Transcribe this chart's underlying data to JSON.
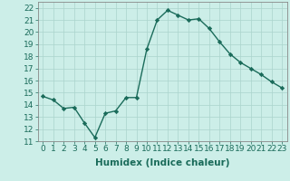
{
  "x": [
    0,
    1,
    2,
    3,
    4,
    5,
    6,
    7,
    8,
    9,
    10,
    11,
    12,
    13,
    14,
    15,
    16,
    17,
    18,
    19,
    20,
    21,
    22,
    23
  ],
  "y": [
    14.7,
    14.4,
    13.7,
    13.8,
    12.5,
    11.3,
    13.3,
    13.5,
    14.6,
    14.6,
    18.6,
    21.0,
    21.8,
    21.4,
    21.0,
    21.1,
    20.3,
    19.2,
    18.2,
    17.5,
    17.0,
    16.5,
    15.9,
    15.4
  ],
  "line_color": "#1a6b5a",
  "marker": "D",
  "marker_size": 2.2,
  "line_width": 1.0,
  "bg_color": "#cceee8",
  "grid_color": "#aad4cc",
  "xlabel": "Humidex (Indice chaleur)",
  "xlim": [
    -0.5,
    23.5
  ],
  "ylim": [
    11,
    22.5
  ],
  "xtick_labels": [
    "0",
    "1",
    "2",
    "3",
    "4",
    "5",
    "6",
    "7",
    "8",
    "9",
    "10",
    "11",
    "12",
    "13",
    "14",
    "15",
    "16",
    "17",
    "18",
    "19",
    "20",
    "21",
    "22",
    "23"
  ],
  "ytick_values": [
    11,
    12,
    13,
    14,
    15,
    16,
    17,
    18,
    19,
    20,
    21,
    22
  ],
  "tick_fontsize": 6.5,
  "xlabel_fontsize": 7.5,
  "tick_color": "#1a6b5a",
  "axis_color": "#888888"
}
